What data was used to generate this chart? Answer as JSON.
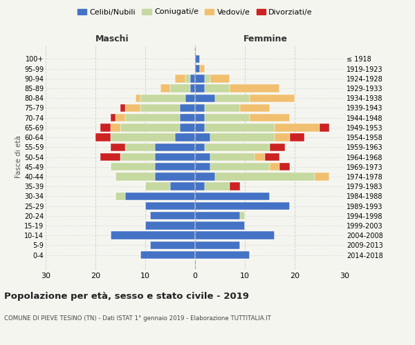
{
  "age_groups": [
    "0-4",
    "5-9",
    "10-14",
    "15-19",
    "20-24",
    "25-29",
    "30-34",
    "35-39",
    "40-44",
    "45-49",
    "50-54",
    "55-59",
    "60-64",
    "65-69",
    "70-74",
    "75-79",
    "80-84",
    "85-89",
    "90-94",
    "95-99",
    "100+"
  ],
  "birth_years": [
    "2014-2018",
    "2009-2013",
    "2004-2008",
    "1999-2003",
    "1994-1998",
    "1989-1993",
    "1984-1988",
    "1979-1983",
    "1974-1978",
    "1969-1973",
    "1964-1968",
    "1959-1963",
    "1954-1958",
    "1949-1953",
    "1944-1948",
    "1939-1943",
    "1934-1938",
    "1929-1933",
    "1924-1928",
    "1919-1923",
    "≤ 1918"
  ],
  "colors": {
    "celibi": "#4472C4",
    "coniugati": "#c5d9a0",
    "vedovi": "#f0c070",
    "divorziati": "#cc2222"
  },
  "maschi": {
    "celibi": [
      11,
      9,
      17,
      10,
      9,
      10,
      14,
      5,
      8,
      8,
      8,
      8,
      4,
      3,
      3,
      3,
      2,
      1,
      1,
      0,
      0
    ],
    "coniugati": [
      0,
      0,
      0,
      0,
      0,
      0,
      2,
      5,
      8,
      9,
      7,
      6,
      13,
      12,
      11,
      8,
      9,
      4,
      1,
      0,
      0
    ],
    "vedovi": [
      0,
      0,
      0,
      0,
      0,
      0,
      0,
      0,
      0,
      0,
      0,
      0,
      0,
      2,
      2,
      3,
      1,
      2,
      2,
      0,
      0
    ],
    "divorziati": [
      0,
      0,
      0,
      0,
      0,
      0,
      0,
      0,
      0,
      0,
      4,
      3,
      3,
      2,
      1,
      1,
      0,
      0,
      0,
      0,
      0
    ]
  },
  "femmine": {
    "celibi": [
      11,
      9,
      16,
      10,
      9,
      19,
      15,
      2,
      4,
      3,
      3,
      2,
      3,
      2,
      2,
      2,
      4,
      2,
      2,
      1,
      1
    ],
    "coniugati": [
      0,
      0,
      0,
      0,
      1,
      0,
      0,
      5,
      20,
      12,
      9,
      13,
      13,
      14,
      9,
      7,
      7,
      5,
      1,
      0,
      0
    ],
    "vedovi": [
      0,
      0,
      0,
      0,
      0,
      0,
      0,
      0,
      3,
      2,
      2,
      0,
      3,
      9,
      8,
      6,
      9,
      10,
      4,
      1,
      0
    ],
    "divorziati": [
      0,
      0,
      0,
      0,
      0,
      0,
      0,
      2,
      0,
      2,
      3,
      3,
      3,
      2,
      0,
      0,
      0,
      0,
      0,
      0,
      0
    ]
  },
  "xlim": 30,
  "title": "Popolazione per età, sesso e stato civile - 2019",
  "subtitle": "COMUNE DI PIEVE TESINO (TN) - Dati ISTAT 1° gennaio 2019 - Elaborazione TUTTITALIA.IT",
  "ylabel_left": "Fasce di età",
  "xlabel_maschi": "Maschi",
  "xlabel_femmine": "Femmine",
  "legend_labels": [
    "Celibi/Nubili",
    "Coniugati/e",
    "Vedovi/e",
    "Divorziati/e"
  ],
  "bg_color": "#f5f5f0",
  "grid_color": "#cccccc"
}
